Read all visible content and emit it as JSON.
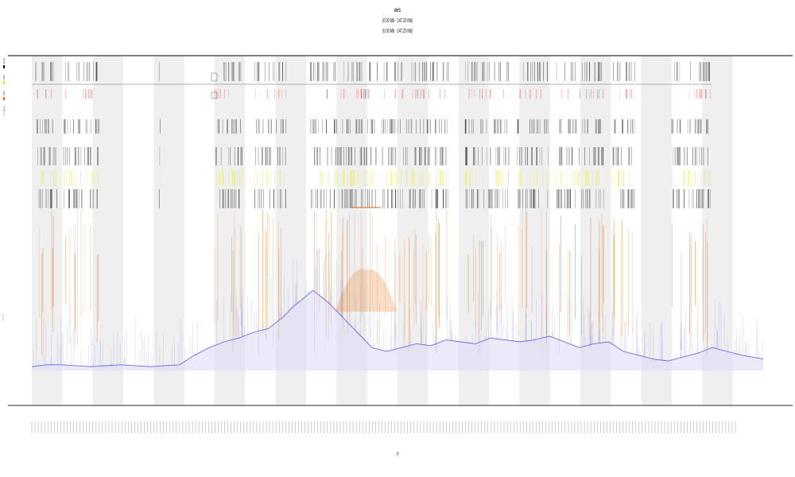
{
  "header": {
    "title": "chr1",
    "subtitle_1": "(0.00 Mb - 247.25 Mb)",
    "subtitle_2": "(0.00 Mb - 247.25 Mb)"
  },
  "legend": {
    "items": [
      {
        "label": "Gene",
        "color": "#000000"
      },
      {
        "label": "SNP",
        "color": "#e4e400"
      },
      {
        "label": "CNV",
        "color": "#e05a00"
      },
      {
        "label": "Exon",
        "color": "#d9d9d9"
      }
    ]
  },
  "axis": {
    "x_label": "Mb",
    "side_label": "density"
  },
  "colors": {
    "band_alternate": "#efefef",
    "frame": "#555555",
    "gene_marks": "#222222",
    "red_marks": "#e04040",
    "yellow_marks": "#e8e84a",
    "orange_spikes": "#e3761e",
    "coverage": "#5a5ae6"
  },
  "chart_data": {
    "type": "area",
    "x_range": [
      0,
      247.25
    ],
    "band_count": 24,
    "coverage": {
      "x": [
        0,
        5,
        10,
        20,
        30,
        40,
        50,
        55,
        60,
        65,
        70,
        75,
        80,
        85,
        88,
        92,
        95,
        100,
        105,
        110,
        115,
        120,
        125,
        130,
        135,
        140,
        145,
        150,
        155,
        160,
        165,
        170,
        175,
        180,
        185,
        190,
        195,
        200,
        205,
        210,
        215,
        220,
        225,
        230,
        235,
        240,
        247.25
      ],
      "y": [
        0.02,
        0.03,
        0.03,
        0.02,
        0.03,
        0.02,
        0.03,
        0.08,
        0.12,
        0.15,
        0.17,
        0.2,
        0.22,
        0.28,
        0.33,
        0.38,
        0.42,
        0.36,
        0.28,
        0.2,
        0.12,
        0.1,
        0.12,
        0.14,
        0.13,
        0.16,
        0.15,
        0.14,
        0.17,
        0.16,
        0.15,
        0.16,
        0.18,
        0.15,
        0.12,
        0.14,
        0.15,
        0.1,
        0.08,
        0.06,
        0.05,
        0.07,
        0.09,
        0.12,
        0.1,
        0.08,
        0.06
      ]
    },
    "peak_window": [
      108,
      118
    ]
  }
}
